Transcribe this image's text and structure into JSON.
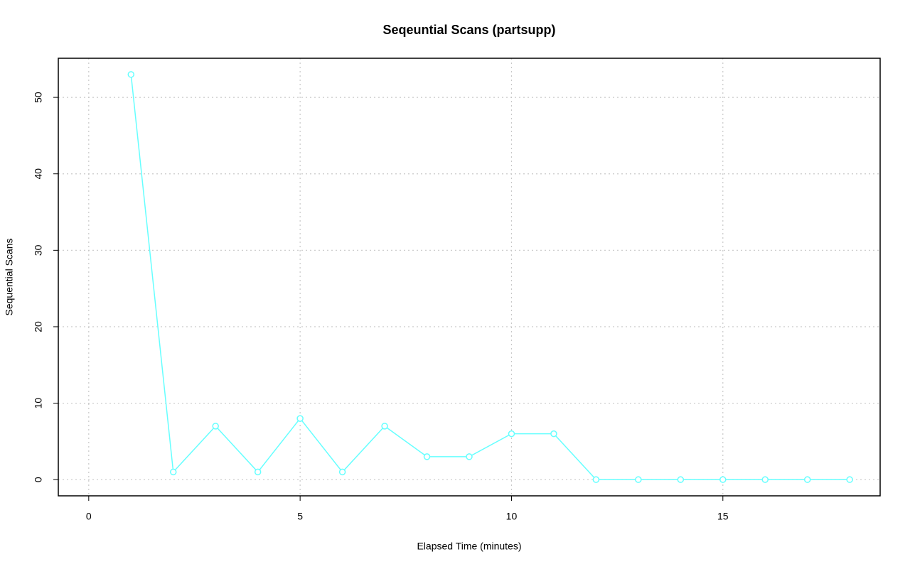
{
  "chart_data": {
    "type": "line",
    "title": "Seqeuntial Scans (partsupp)",
    "x_label": "Elapsed Time (minutes)",
    "y_label": "Sequential Scans",
    "x": [
      1,
      2,
      3,
      4,
      5,
      6,
      7,
      8,
      9,
      10,
      11,
      12,
      13,
      14,
      15,
      16,
      17,
      18
    ],
    "series": [
      {
        "color": "#66ffff",
        "values": [
          53,
          1,
          7,
          1,
          8,
          1,
          7,
          3,
          3,
          6,
          6,
          0,
          0,
          0,
          0,
          0,
          0,
          0
        ]
      }
    ],
    "xlim": [
      -0.72,
      18.72
    ],
    "ylim": [
      -2.12,
      55.12
    ],
    "xticks": [
      0,
      5,
      10,
      15
    ],
    "yticks": [
      0,
      10,
      20,
      30,
      40,
      50
    ],
    "grid": true
  }
}
